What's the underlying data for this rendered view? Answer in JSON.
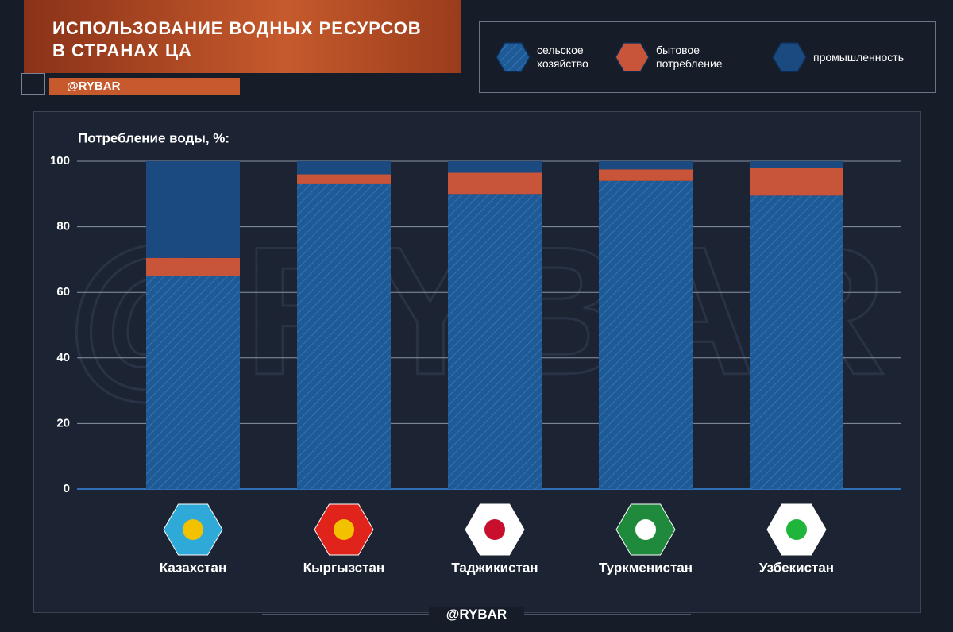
{
  "title": "ИСПОЛЬЗОВАНИЕ ВОДНЫХ РЕСУРСОВ В СТРАНАХ ЦА",
  "brand": "@RYBAR",
  "chart_data": {
    "type": "stacked_bar",
    "y_label": "Потребление воды, %:",
    "categories": [
      "Казахстан",
      "Кыргызстан",
      "Таджикистан",
      "Туркменистан",
      "Узбекистан"
    ],
    "series": [
      {
        "name": "сельское хозяйство",
        "color": "#1d5a96",
        "values": [
          65,
          93,
          90,
          94,
          89.5
        ]
      },
      {
        "name": "бытовое потребление",
        "color": "#c8553a",
        "values": [
          5.5,
          3,
          6.5,
          3.5,
          8.5
        ]
      },
      {
        "name": "промышленность",
        "color": "#1a4a80",
        "values": [
          29.5,
          4,
          3.5,
          2.5,
          2
        ]
      }
    ],
    "ylim": [
      0,
      100
    ],
    "yticks": [
      0,
      20,
      40,
      60,
      80,
      100
    ],
    "grid": true
  }
}
